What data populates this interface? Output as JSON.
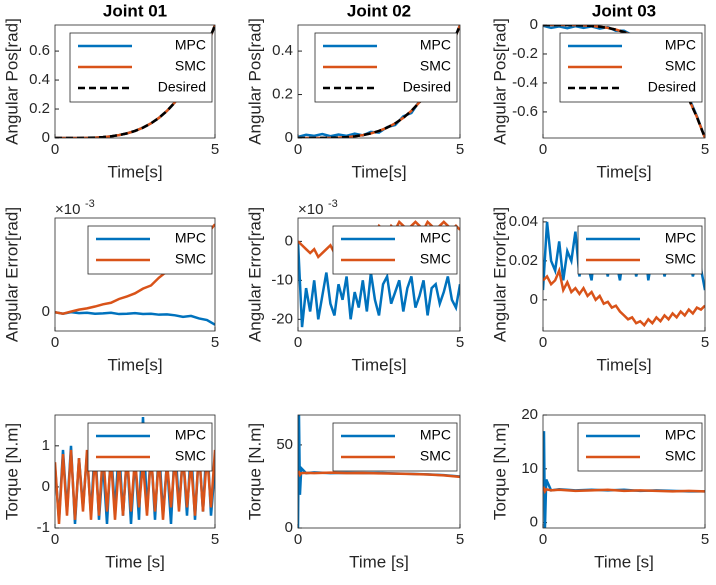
{
  "chart_data": [
    {
      "type": "line",
      "title": "Joint 01",
      "x_label": "Time[s]",
      "y_label": "Angular Pos[rad]",
      "legend": "northeast",
      "x": [
        0,
        0.25,
        0.5,
        0.75,
        1,
        1.25,
        1.5,
        1.75,
        2,
        2.25,
        2.5,
        2.75,
        3,
        3.25,
        3.5,
        3.75,
        4,
        4.25,
        4.5,
        4.75,
        5
      ],
      "series": [
        {
          "name": "MPC",
          "color": "#0072BD",
          "values": [
            0,
            0,
            0.0001,
            0.0004,
            0.0012,
            0.003,
            0.0063,
            0.0117,
            0.02,
            0.032,
            0.0488,
            0.0714,
            0.1011,
            0.1392,
            0.1873,
            0.2468,
            0.3195,
            0.4072,
            0.5118,
            0.6353,
            0.78
          ]
        },
        {
          "name": "SMC",
          "color": "#D95319",
          "values": [
            0,
            0,
            0.0001,
            0.0004,
            0.0012,
            0.003,
            0.0063,
            0.0117,
            0.02,
            0.032,
            0.0488,
            0.0714,
            0.1011,
            0.1392,
            0.1873,
            0.2468,
            0.3195,
            0.4072,
            0.5118,
            0.6353,
            0.78
          ]
        },
        {
          "name": "Desired",
          "color": "#000000",
          "line_style": "dashed",
          "values": [
            0,
            0,
            0.0001,
            0.0004,
            0.0012,
            0.003,
            0.0063,
            0.0117,
            0.02,
            0.032,
            0.0488,
            0.0714,
            0.1011,
            0.1392,
            0.1873,
            0.2468,
            0.3195,
            0.4072,
            0.5118,
            0.6353,
            0.78
          ]
        }
      ],
      "xlim": [
        0,
        5
      ],
      "xticks": [
        0,
        5
      ],
      "ylim": [
        0,
        0.78
      ],
      "yticks": [
        0,
        0.2,
        0.4,
        0.6
      ]
    },
    {
      "type": "line",
      "title": "Joint 02",
      "x_label": "Time[s]",
      "y_label": "Angular Pos[rad]",
      "legend": "northeast",
      "x": [
        0,
        0.25,
        0.5,
        0.75,
        1,
        1.25,
        1.5,
        1.75,
        2,
        2.25,
        2.5,
        2.75,
        3,
        3.25,
        3.5,
        3.75,
        4,
        4.25,
        4.5,
        4.75,
        5
      ],
      "series": [
        {
          "name": "MPC",
          "color": "#0072BD",
          "values": [
            0.005,
            0.015,
            0.01,
            0.018,
            0.008,
            0.016,
            0.01,
            0.02,
            0.012,
            0.028,
            0.025,
            0.05,
            0.06,
            0.1,
            0.115,
            0.17,
            0.205,
            0.275,
            0.335,
            0.43,
            0.52
          ]
        },
        {
          "name": "SMC",
          "color": "#D95319",
          "values": [
            0,
            0,
            0.0001,
            0.0003,
            0.0008,
            0.002,
            0.0042,
            0.0078,
            0.0133,
            0.0213,
            0.0325,
            0.0476,
            0.0674,
            0.0928,
            0.1249,
            0.1645,
            0.213,
            0.2714,
            0.3412,
            0.4235,
            0.52
          ]
        },
        {
          "name": "Desired",
          "color": "#000000",
          "line_style": "dashed",
          "values": [
            0,
            0,
            0.0001,
            0.0003,
            0.0008,
            0.002,
            0.0042,
            0.0078,
            0.0133,
            0.0213,
            0.0325,
            0.0476,
            0.0674,
            0.0928,
            0.1249,
            0.1645,
            0.213,
            0.2714,
            0.3412,
            0.4235,
            0.52
          ]
        }
      ],
      "xlim": [
        0,
        5
      ],
      "xticks": [
        0,
        5
      ],
      "ylim": [
        0,
        0.52
      ],
      "yticks": [
        0,
        0.2,
        0.4
      ]
    },
    {
      "type": "line",
      "title": "Joint 03",
      "x_label": "Time[s]",
      "y_label": "Angular Pos[rad]",
      "legend": "northeast",
      "x": [
        0,
        0.25,
        0.5,
        0.75,
        1,
        1.25,
        1.5,
        1.75,
        2,
        2.25,
        2.5,
        2.75,
        3,
        3.25,
        3.5,
        3.75,
        4,
        4.25,
        4.5,
        4.75,
        5
      ],
      "series": [
        {
          "name": "MPC",
          "color": "#0072BD",
          "values": [
            -0.005,
            -0.02,
            -0.01,
            -0.022,
            -0.008,
            -0.02,
            -0.01,
            -0.025,
            -0.015,
            -0.04,
            -0.04,
            -0.07,
            -0.09,
            -0.13,
            -0.18,
            -0.24,
            -0.31,
            -0.4,
            -0.5,
            -0.63,
            -0.78
          ]
        },
        {
          "name": "SMC",
          "color": "#D95319",
          "values": [
            0,
            0,
            -0.0001,
            -0.0004,
            -0.0012,
            -0.003,
            -0.0063,
            -0.0117,
            -0.02,
            -0.032,
            -0.0488,
            -0.0714,
            -0.1011,
            -0.1392,
            -0.1873,
            -0.2468,
            -0.3195,
            -0.4072,
            -0.5118,
            -0.6353,
            -0.78
          ]
        },
        {
          "name": "Desired",
          "color": "#000000",
          "line_style": "dashed",
          "values": [
            0,
            0,
            -0.0001,
            -0.0004,
            -0.0012,
            -0.003,
            -0.0063,
            -0.0117,
            -0.02,
            -0.032,
            -0.0488,
            -0.0714,
            -0.1011,
            -0.1392,
            -0.1873,
            -0.2468,
            -0.3195,
            -0.4072,
            -0.5118,
            -0.6353,
            -0.78
          ]
        }
      ],
      "xlim": [
        0,
        5
      ],
      "xticks": [
        0,
        5
      ],
      "ylim": [
        -0.78,
        0
      ],
      "yticks": [
        -0.6,
        -0.4,
        -0.2,
        0
      ]
    },
    {
      "type": "line",
      "x_label": "Time[s]",
      "y_label": "Angular Error[rad]",
      "y_exponent_base": "×10",
      "y_exponent": "-3",
      "legend": "northeast",
      "x": [
        0,
        0.25,
        0.5,
        0.75,
        1,
        1.25,
        1.5,
        1.75,
        2,
        2.25,
        2.5,
        2.75,
        3,
        3.25,
        3.5,
        3.75,
        4,
        4.25,
        4.5,
        4.75,
        5
      ],
      "series": [
        {
          "name": "MPC",
          "color": "#0072BD",
          "values": [
            0,
            -0.05,
            0,
            -0.03,
            -0.02,
            -0.05,
            -0.04,
            -0.02,
            -0.06,
            -0.05,
            -0.03,
            -0.06,
            -0.05,
            -0.08,
            -0.07,
            -0.1,
            -0.15,
            -0.12,
            -0.2,
            -0.25,
            -0.4
          ]
        },
        {
          "name": "SMC",
          "color": "#D95319",
          "values": [
            0,
            -0.05,
            0.02,
            0.08,
            0.12,
            0.18,
            0.25,
            0.3,
            0.42,
            0.5,
            0.6,
            0.75,
            0.85,
            1.1,
            1.3,
            1.55,
            1.9,
            2.1,
            2.3,
            2.5,
            2.8
          ]
        }
      ],
      "xlim": [
        0,
        5
      ],
      "xticks": [
        0,
        5
      ],
      "ylim": [
        -0.6,
        3
      ],
      "yticks": [
        0
      ]
    },
    {
      "type": "line",
      "x_label": "Time[s]",
      "y_label": "Angular Error[rad]",
      "y_exponent_base": "×10",
      "y_exponent": "-3",
      "legend": "northeast",
      "x": [
        0,
        0.125,
        0.25,
        0.375,
        0.5,
        0.625,
        0.75,
        0.875,
        1,
        1.125,
        1.25,
        1.375,
        1.5,
        1.625,
        1.75,
        1.875,
        2,
        2.125,
        2.25,
        2.375,
        2.5,
        2.625,
        2.75,
        2.875,
        3,
        3.125,
        3.25,
        3.375,
        3.5,
        3.625,
        3.75,
        3.875,
        4,
        4.125,
        4.25,
        4.375,
        4.5,
        4.625,
        4.75,
        4.875,
        5
      ],
      "series": [
        {
          "name": "MPC",
          "color": "#0072BD",
          "values": [
            0,
            -22,
            -12,
            -18,
            -10,
            -20,
            -14,
            -8,
            -16,
            -19,
            -11,
            -15,
            -9,
            -20,
            -13,
            -17,
            -10,
            -18,
            -8,
            -15,
            -19,
            -11,
            -9,
            -16,
            -13,
            -10,
            -18,
            -12,
            -9,
            -17,
            -14,
            -10,
            -19,
            -12,
            -11,
            -16,
            -13,
            -9,
            -15,
            -17,
            -11
          ]
        },
        {
          "name": "SMC",
          "color": "#D95319",
          "values": [
            0,
            -1,
            -2,
            -3,
            -2,
            -4,
            -3,
            -2,
            -1,
            -3,
            -2,
            -1,
            -0.5,
            0,
            1,
            0,
            2,
            1,
            3,
            2,
            4,
            3,
            2,
            4,
            3,
            5,
            4,
            3,
            4,
            5,
            4,
            3,
            5,
            4,
            3,
            4,
            5,
            4,
            3,
            4,
            3
          ]
        }
      ],
      "xlim": [
        0,
        5
      ],
      "xticks": [
        0,
        5
      ],
      "ylim": [
        -23,
        6
      ],
      "yticks": [
        -20,
        -10,
        0
      ]
    },
    {
      "type": "line",
      "x_label": "Time[s]",
      "y_label": "Angular Error[rad]",
      "legend": "northeast",
      "x": [
        0,
        0.125,
        0.25,
        0.375,
        0.5,
        0.625,
        0.75,
        0.875,
        1,
        1.125,
        1.25,
        1.375,
        1.5,
        1.625,
        1.75,
        1.875,
        2,
        2.125,
        2.25,
        2.375,
        2.5,
        2.625,
        2.75,
        2.875,
        3,
        3.125,
        3.25,
        3.375,
        3.5,
        3.625,
        3.75,
        3.875,
        4,
        4.125,
        4.25,
        4.375,
        4.5,
        4.625,
        4.75,
        4.875,
        5
      ],
      "series": [
        {
          "name": "MPC",
          "color": "#0072BD",
          "values": [
            0.005,
            0.04,
            0.02,
            0.015,
            0.03,
            0.01,
            0.025,
            0.02,
            0.035,
            0.012,
            0.028,
            0.018,
            0.01,
            0.03,
            0.015,
            0.022,
            0.012,
            0.03,
            0.02,
            0.01,
            0.025,
            0.015,
            0.028,
            0.012,
            0.02,
            0.03,
            0.01,
            0.022,
            0.018,
            0.026,
            0.012,
            0.02,
            0.028,
            0.014,
            0.022,
            0.018,
            0.025,
            0.012,
            0.02,
            0.016,
            0.005
          ]
        },
        {
          "name": "SMC",
          "color": "#D95319",
          "values": [
            0.01,
            0.012,
            0.008,
            0.01,
            0.015,
            0.005,
            0.009,
            0.004,
            0.006,
            0.003,
            0.006,
            0.002,
            0.004,
            0,
            0.002,
            -0.002,
            -0.001,
            -0.004,
            -0.003,
            -0.006,
            -0.008,
            -0.01,
            -0.009,
            -0.012,
            -0.011,
            -0.013,
            -0.01,
            -0.012,
            -0.009,
            -0.011,
            -0.008,
            -0.01,
            -0.007,
            -0.009,
            -0.006,
            -0.008,
            -0.005,
            -0.007,
            -0.004,
            -0.005,
            -0.003
          ]
        }
      ],
      "xlim": [
        0,
        5
      ],
      "xticks": [
        0,
        5
      ],
      "ylim": [
        -0.016,
        0.042
      ],
      "yticks": [
        0,
        0.02,
        0.04
      ]
    },
    {
      "type": "line",
      "x_label": "Time [s]",
      "y_label": "Torque [N.m]",
      "legend": "northeast",
      "x": [
        0,
        0.125,
        0.25,
        0.375,
        0.5,
        0.625,
        0.75,
        0.875,
        1,
        1.125,
        1.25,
        1.375,
        1.5,
        1.625,
        1.75,
        1.875,
        2,
        2.125,
        2.25,
        2.375,
        2.5,
        2.625,
        2.75,
        2.875,
        3,
        3.125,
        3.25,
        3.375,
        3.5,
        3.625,
        3.75,
        3.875,
        4,
        4.125,
        4.25,
        4.375,
        4.5,
        4.625,
        4.75,
        4.875,
        5
      ],
      "series": [
        {
          "name": "MPC",
          "color": "#0072BD",
          "values": [
            0.5,
            -0.8,
            0.9,
            -0.6,
            1,
            -0.9,
            0.7,
            -0.5,
            0.8,
            -0.7,
            1.1,
            -0.8,
            0.6,
            -0.9,
            0.9,
            -0.6,
            1,
            -0.7,
            0.8,
            -0.9,
            0.7,
            -0.8,
            1.7,
            -0.6,
            0.9,
            -0.8,
            1,
            -0.7,
            0.6,
            -0.9,
            1.1,
            -0.5,
            0.8,
            -0.7,
            1,
            -0.8,
            0.9,
            -0.6,
            1.2,
            -0.7,
            0.5
          ]
        },
        {
          "name": "SMC",
          "color": "#D95319",
          "values": [
            0.6,
            -0.9,
            0.8,
            -0.7,
            0.9,
            -0.8,
            0.7,
            -0.6,
            0.9,
            -0.8,
            0.8,
            -0.7,
            0.9,
            -0.6,
            0.7,
            -0.8,
            0.6,
            -0.7,
            0.8,
            -0.6,
            0.7,
            -0.5,
            0.6,
            -0.7,
            0.8,
            -0.6,
            0.7,
            -0.8,
            0.6,
            -0.5,
            0.7,
            -0.6,
            0.8,
            -0.5,
            0.6,
            -0.7,
            0.9,
            -0.6,
            0.8,
            -0.5,
            0.9
          ]
        }
      ],
      "xlim": [
        0,
        5
      ],
      "xticks": [
        0,
        5
      ],
      "ylim": [
        -1,
        1.75
      ],
      "yticks": [
        -1,
        0,
        1
      ]
    },
    {
      "type": "line",
      "x_label": "Time [s]",
      "y_label": "Torque [N.m]",
      "legend": "northeast",
      "x": [
        0,
        0.03,
        0.06,
        0.1,
        0.25,
        0.5,
        1,
        1.5,
        2,
        2.5,
        3,
        3.5,
        4,
        4.5,
        5
      ],
      "series": [
        {
          "name": "MPC",
          "color": "#0072BD",
          "values": [
            0,
            68,
            20,
            36,
            33,
            33.5,
            33,
            33.2,
            33,
            33.1,
            32.8,
            32.6,
            32.3,
            31.8,
            31
          ]
        },
        {
          "name": "SMC",
          "color": "#D95319",
          "values": [
            33,
            33.5,
            32,
            33,
            33.2,
            33,
            33.3,
            33,
            33.1,
            32.9,
            32.7,
            32.5,
            32.2,
            31.7,
            30.8
          ]
        }
      ],
      "xlim": [
        0,
        5
      ],
      "xticks": [
        0,
        5
      ],
      "ylim": [
        0,
        68
      ],
      "yticks": [
        0,
        50
      ]
    },
    {
      "type": "line",
      "x_label": "Time [s]",
      "y_label": "Torque [N.m]",
      "legend": "northeast",
      "x": [
        0,
        0.03,
        0.06,
        0.1,
        0.25,
        0.5,
        1,
        1.5,
        2,
        2.5,
        3,
        3.5,
        4,
        4.5,
        5
      ],
      "series": [
        {
          "name": "MPC",
          "color": "#0072BD",
          "values": [
            6,
            17,
            -1,
            8,
            6,
            6.2,
            6,
            6.1,
            6,
            6.1,
            5.9,
            6,
            5.9,
            5.8,
            5.8
          ]
        },
        {
          "name": "SMC",
          "color": "#D95319",
          "values": [
            6,
            6.3,
            5.8,
            6.2,
            6,
            6.1,
            5.9,
            6,
            6.1,
            5.9,
            6,
            5.9,
            5.8,
            5.9,
            5.8
          ]
        }
      ],
      "xlim": [
        0,
        5
      ],
      "xticks": [
        0,
        5
      ],
      "ylim": [
        -1,
        20
      ],
      "yticks": [
        0,
        10,
        20
      ]
    }
  ]
}
